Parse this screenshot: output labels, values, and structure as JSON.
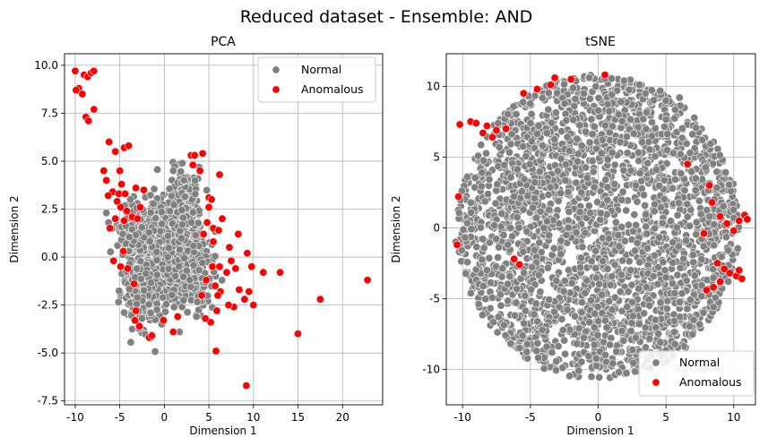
{
  "figure": {
    "suptitle": "Reduced dataset - Ensemble: AND"
  },
  "chart_data": [
    {
      "type": "scatter",
      "title": "PCA",
      "xlabel": "Dimension 1",
      "ylabel": "Dimension 2",
      "xlim": [
        -11.2,
        24.5
      ],
      "ylim": [
        -7.7,
        10.6
      ],
      "xticks": [
        -10,
        -5,
        0,
        5,
        10,
        15,
        20
      ],
      "yticks": [
        -7.5,
        -5.0,
        -2.5,
        0.0,
        2.5,
        5.0,
        7.5,
        10.0
      ],
      "grid": true,
      "legend": "top-right",
      "series": [
        {
          "name": "Normal",
          "color": "#808080",
          "clusters": [
            {
              "cx": 0.0,
              "cy": 0.3,
              "sx": 1.8,
              "sy": 1.3,
              "n": 900
            },
            {
              "cx": 2.4,
              "cy": 1.8,
              "sx": 0.9,
              "sy": 1.4,
              "n": 220
            },
            {
              "cx": -2.5,
              "cy": -1.8,
              "sx": 1.0,
              "sy": 0.9,
              "n": 200
            },
            {
              "cx": 3.5,
              "cy": -0.8,
              "sx": 1.0,
              "sy": 1.0,
              "n": 120
            },
            {
              "cx": -4.0,
              "cy": 1.5,
              "sx": 0.8,
              "sy": 0.8,
              "n": 80
            }
          ],
          "points": [
            [
              -1.5,
              -4.2
            ],
            [
              1.7,
              -3.9
            ],
            [
              -0.3,
              -3.5
            ],
            [
              3.6,
              -3.1
            ],
            [
              -2.5,
              -3.2
            ],
            [
              2.2,
              4.0
            ],
            [
              1.0,
              4.5
            ],
            [
              -6.5,
              2.3
            ],
            [
              -3.8,
              3.0
            ]
          ]
        },
        {
          "name": "Anomalous",
          "color": "#ff0000",
          "points": [
            [
              -10.0,
              9.7
            ],
            [
              -9.6,
              8.8
            ],
            [
              -9.0,
              9.5
            ],
            [
              -8.6,
              9.4
            ],
            [
              -8.2,
              9.6
            ],
            [
              -7.9,
              9.7
            ],
            [
              -9.9,
              8.7
            ],
            [
              -9.2,
              8.5
            ],
            [
              -8.8,
              7.3
            ],
            [
              -8.5,
              7.1
            ],
            [
              -7.9,
              7.7
            ],
            [
              -6.8,
              4.5
            ],
            [
              -6.2,
              6.0
            ],
            [
              -5.5,
              5.5
            ],
            [
              -4.5,
              5.7
            ],
            [
              -4.0,
              5.8
            ],
            [
              -5.0,
              4.5
            ],
            [
              -6.5,
              4.0
            ],
            [
              -5.8,
              3.4
            ],
            [
              -6.3,
              3.2
            ],
            [
              -4.8,
              3.8
            ],
            [
              -3.2,
              3.6
            ],
            [
              -2.3,
              3.5
            ],
            [
              -5.5,
              2.0
            ],
            [
              -6.1,
              1.5
            ],
            [
              -4.2,
              2.4
            ],
            [
              -3.6,
              2.1
            ],
            [
              -4.9,
              2.6
            ],
            [
              -4.5,
              1.9
            ],
            [
              -3.0,
              2.0
            ],
            [
              -5.3,
              2.9
            ],
            [
              -5.7,
              -0.2
            ],
            [
              -4.9,
              -0.5
            ],
            [
              -4.1,
              -0.6
            ],
            [
              -3.2,
              -2.8
            ],
            [
              -2.8,
              -3.6
            ],
            [
              -3.3,
              -3.3
            ],
            [
              -1.7,
              -4.2
            ],
            [
              -1.4,
              -4.1
            ],
            [
              -0.1,
              -3.3
            ],
            [
              1.0,
              -3.9
            ],
            [
              1.5,
              -3.1
            ],
            [
              3.0,
              5.3
            ],
            [
              3.4,
              5.3
            ],
            [
              4.3,
              5.4
            ],
            [
              5.0,
              3.1
            ],
            [
              5.3,
              3.0
            ],
            [
              4.0,
              4.5
            ],
            [
              5.0,
              2.6
            ],
            [
              3.2,
              4.8
            ],
            [
              4.8,
              1.8
            ],
            [
              4.4,
              1.2
            ],
            [
              6.2,
              4.3
            ],
            [
              5.5,
              1.5
            ],
            [
              6.5,
              2.0
            ],
            [
              7.3,
              0.5
            ],
            [
              8.3,
              1.2
            ],
            [
              7.5,
              -0.2
            ],
            [
              5.4,
              -0.5
            ],
            [
              6.2,
              -0.5
            ],
            [
              7.0,
              -0.8
            ],
            [
              8.0,
              -0.6
            ],
            [
              9.3,
              0.2
            ],
            [
              5.7,
              -1.5
            ],
            [
              6.3,
              -1.8
            ],
            [
              8.4,
              -1.7
            ],
            [
              9.0,
              -2.2
            ],
            [
              9.5,
              -1.8
            ],
            [
              10.0,
              -2.5
            ],
            [
              9.8,
              -0.5
            ],
            [
              7.8,
              -2.6
            ],
            [
              7.2,
              -2.5
            ],
            [
              6.0,
              -2.0
            ],
            [
              5.2,
              -3.4
            ],
            [
              5.8,
              -4.9
            ],
            [
              4.6,
              -3.2
            ],
            [
              11.1,
              -0.8
            ],
            [
              13.0,
              -0.8
            ],
            [
              15.0,
              -4.0
            ],
            [
              17.5,
              -2.2
            ],
            [
              22.8,
              -1.2
            ],
            [
              9.2,
              -6.7
            ],
            [
              5.5,
              0.8
            ],
            [
              6.1,
              1.4
            ],
            [
              4.7,
              -1.2
            ],
            [
              5.9,
              -2.8
            ],
            [
              4.2,
              -2.0
            ],
            [
              -5.1,
              3.3
            ],
            [
              -4.4,
              3.3
            ],
            [
              -2.7,
              2.6
            ],
            [
              -3.4,
              -1.4
            ],
            [
              -4.6,
              0.3
            ]
          ]
        }
      ]
    },
    {
      "type": "scatter",
      "title": "tSNE",
      "xlabel": "Dimension 1",
      "ylabel": "Dimension 2",
      "xlim": [
        -11.2,
        11.6
      ],
      "ylim": [
        -12.5,
        12.3
      ],
      "xticks": [
        -10,
        -5,
        0,
        5,
        10
      ],
      "yticks": [
        -10,
        -5,
        0,
        5,
        10
      ],
      "grid": true,
      "legend": "bottom-right",
      "series": [
        {
          "name": "Normal",
          "color": "#808080",
          "disc": {
            "cx": 0.0,
            "cy": 0.0,
            "rx": 10.4,
            "ry": 10.8,
            "n": 2600
          },
          "gap_band": {
            "x1": -4.0,
            "y1": -3.5,
            "x2": 4.0,
            "y2": 2.5,
            "width": 0.35
          },
          "points": [
            [
              3.5,
              9.5
            ],
            [
              6.0,
              9.2
            ],
            [
              7.2,
              3.5
            ],
            [
              -10.5,
              -1.0
            ]
          ]
        },
        {
          "name": "Anomalous",
          "color": "#ff0000",
          "points": [
            [
              -10.2,
              7.3
            ],
            [
              -9.4,
              7.5
            ],
            [
              -9.0,
              7.4
            ],
            [
              -8.2,
              7.2
            ],
            [
              -7.5,
              6.9
            ],
            [
              -6.8,
              7.0
            ],
            [
              -10.3,
              2.2
            ],
            [
              -10.4,
              -1.2
            ],
            [
              -5.5,
              9.5
            ],
            [
              -4.5,
              9.8
            ],
            [
              -3.5,
              10.1
            ],
            [
              -3.2,
              10.6
            ],
            [
              -2.0,
              10.5
            ],
            [
              0.5,
              10.8
            ],
            [
              6.6,
              4.5
            ],
            [
              8.4,
              1.8
            ],
            [
              9.0,
              0.8
            ],
            [
              9.5,
              0.3
            ],
            [
              10.0,
              -0.2
            ],
            [
              10.4,
              0.5
            ],
            [
              10.8,
              0.9
            ],
            [
              11.0,
              0.6
            ],
            [
              8.8,
              -2.5
            ],
            [
              9.3,
              -2.9
            ],
            [
              9.7,
              -3.2
            ],
            [
              10.2,
              -3.4
            ],
            [
              10.6,
              -3.6
            ],
            [
              9.0,
              -3.8
            ],
            [
              8.5,
              -4.2
            ],
            [
              8.0,
              -4.4
            ],
            [
              10.4,
              -3.0
            ],
            [
              -7.8,
              6.4
            ],
            [
              -8.5,
              6.7
            ],
            [
              -6.2,
              -2.2
            ],
            [
              -5.8,
              -2.6
            ],
            [
              7.8,
              -0.4
            ],
            [
              8.2,
              3.0
            ]
          ]
        }
      ]
    }
  ]
}
